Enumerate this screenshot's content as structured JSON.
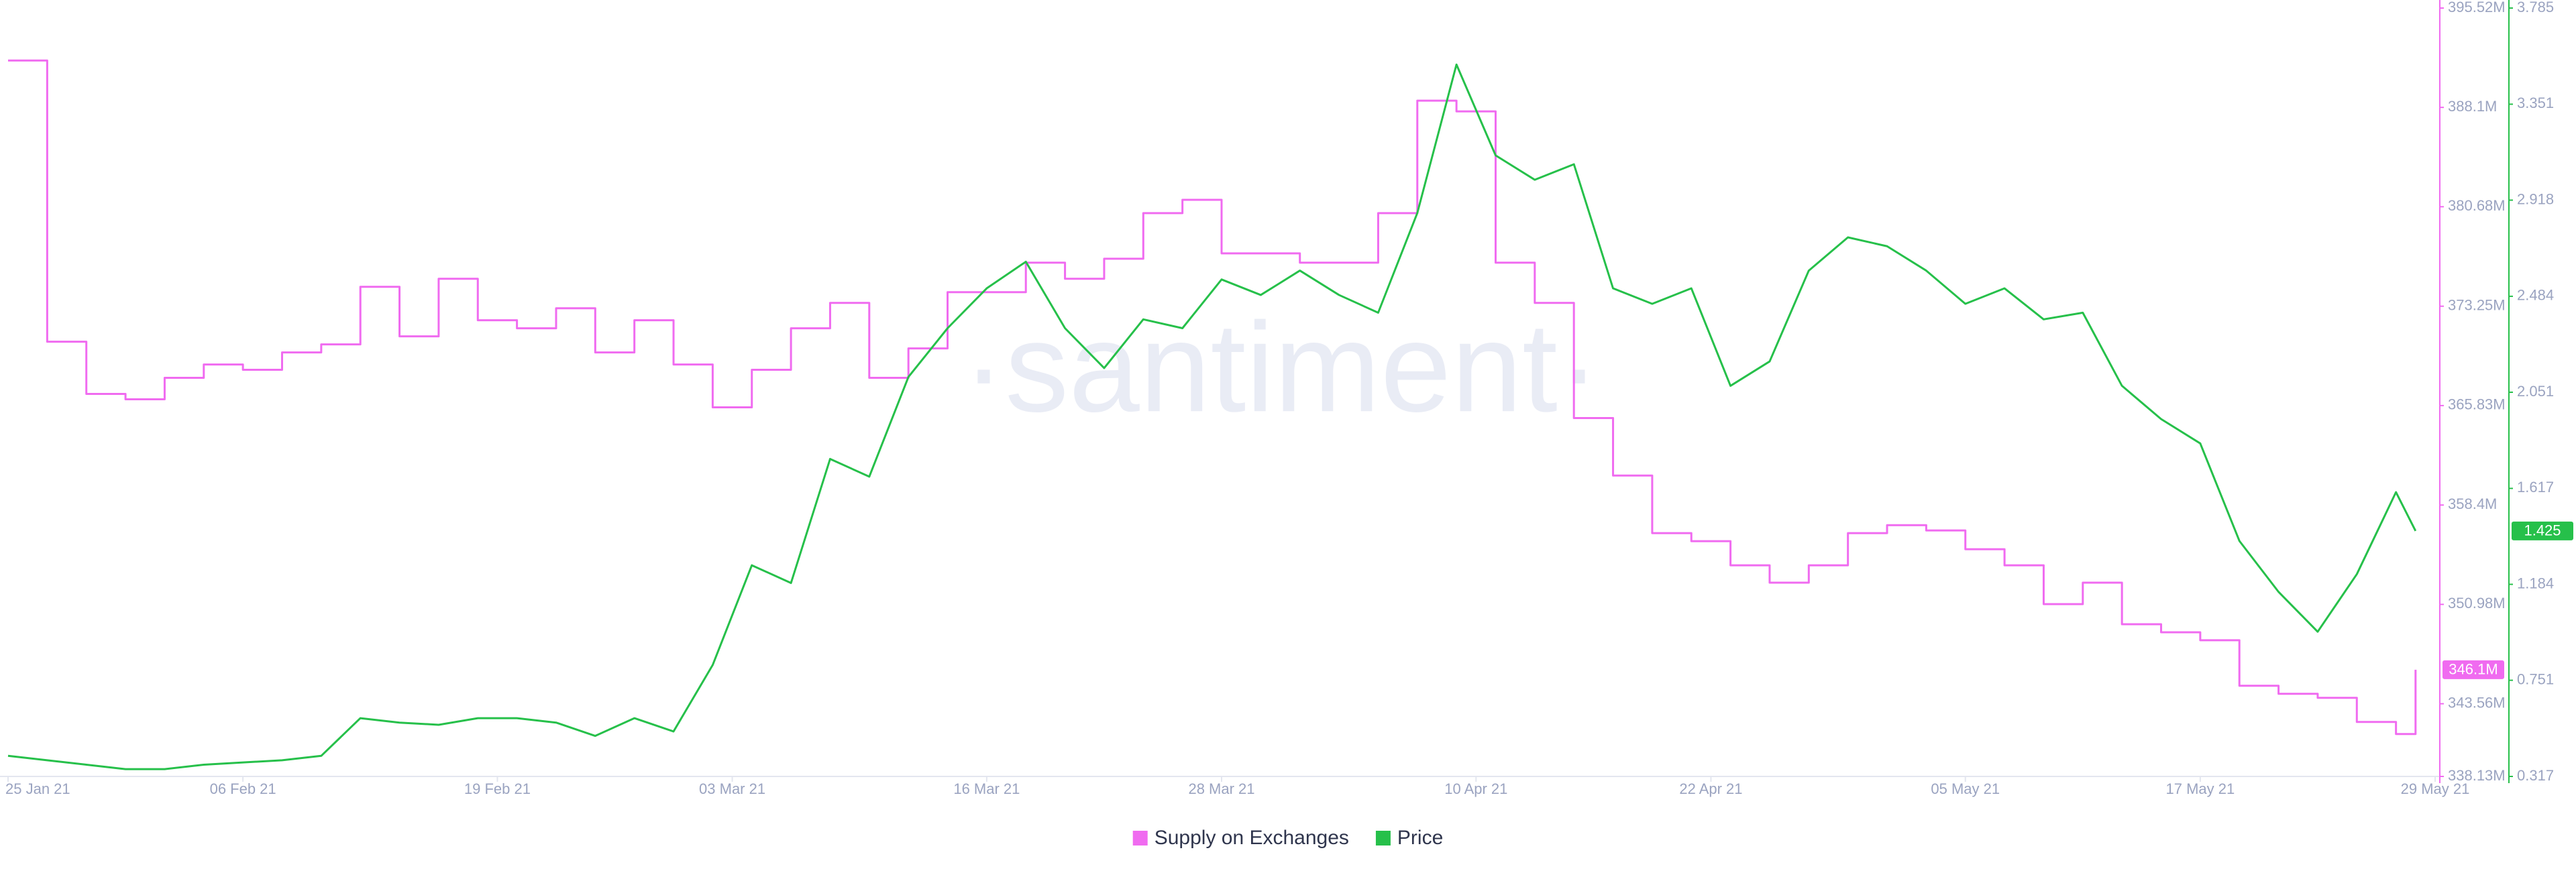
{
  "chart_data": {
    "type": "line",
    "watermark": "·santiment·",
    "x": [
      "2021-01-25",
      "2021-01-27",
      "2021-01-29",
      "2021-01-31",
      "2021-02-02",
      "2021-02-04",
      "2021-02-06",
      "2021-02-08",
      "2021-02-10",
      "2021-02-12",
      "2021-02-14",
      "2021-02-16",
      "2021-02-18",
      "2021-02-20",
      "2021-02-22",
      "2021-02-24",
      "2021-02-26",
      "2021-02-28",
      "2021-03-02",
      "2021-03-04",
      "2021-03-06",
      "2021-03-08",
      "2021-03-10",
      "2021-03-12",
      "2021-03-14",
      "2021-03-16",
      "2021-03-18",
      "2021-03-20",
      "2021-03-22",
      "2021-03-24",
      "2021-03-26",
      "2021-03-28",
      "2021-03-30",
      "2021-04-01",
      "2021-04-03",
      "2021-04-05",
      "2021-04-07",
      "2021-04-09",
      "2021-04-11",
      "2021-04-13",
      "2021-04-15",
      "2021-04-17",
      "2021-04-19",
      "2021-04-21",
      "2021-04-23",
      "2021-04-25",
      "2021-04-27",
      "2021-04-29",
      "2021-05-01",
      "2021-05-03",
      "2021-05-05",
      "2021-05-07",
      "2021-05-09",
      "2021-05-11",
      "2021-05-13",
      "2021-05-15",
      "2021-05-17",
      "2021-05-19",
      "2021-05-21",
      "2021-05-23",
      "2021-05-25",
      "2021-05-27",
      "2021-05-28"
    ],
    "xlim": [
      "2021-01-25",
      "2021-05-29"
    ],
    "xticks": [
      {
        "value": "2021-01-25",
        "label": "25 Jan 21"
      },
      {
        "value": "2021-02-06",
        "label": "06 Feb 21"
      },
      {
        "value": "2021-02-19",
        "label": "19 Feb 21"
      },
      {
        "value": "2021-03-03",
        "label": "03 Mar 21"
      },
      {
        "value": "2021-03-16",
        "label": "16 Mar 21"
      },
      {
        "value": "2021-03-28",
        "label": "28 Mar 21"
      },
      {
        "value": "2021-04-10",
        "label": "10 Apr 21"
      },
      {
        "value": "2021-04-22",
        "label": "22 Apr 21"
      },
      {
        "value": "2021-05-05",
        "label": "05 May 21"
      },
      {
        "value": "2021-05-17",
        "label": "17 May 21"
      },
      {
        "value": "2021-05-29",
        "label": "29 May 21"
      }
    ],
    "ylim": [
      338.13,
      395.52
    ],
    "yticks": [
      {
        "value": 338.13,
        "label": "338.13M"
      },
      {
        "value": 343.56,
        "label": "343.56M"
      },
      {
        "value": 350.98,
        "label": "350.98M"
      },
      {
        "value": 358.4,
        "label": "358.4M"
      },
      {
        "value": 365.83,
        "label": "365.83M"
      },
      {
        "value": 373.25,
        "label": "373.25M"
      },
      {
        "value": 380.68,
        "label": "380.68M"
      },
      {
        "value": 388.1,
        "label": "388.1M"
      },
      {
        "value": 395.52,
        "label": "395.52M"
      }
    ],
    "y2lim": [
      0.317,
      3.785
    ],
    "y2ticks": [
      0.317,
      0.751,
      1.184,
      1.617,
      2.051,
      2.484,
      2.918,
      3.351,
      3.785
    ],
    "series": [
      {
        "name": "Supply on Exchanges",
        "color": "#f06bf0",
        "axis": "y",
        "step": true,
        "last_label": "346.1M",
        "values": [
          391.6,
          370.6,
          366.7,
          366.3,
          367.9,
          368.9,
          368.5,
          369.8,
          370.4,
          374.7,
          371.0,
          375.3,
          372.2,
          371.6,
          373.1,
          369.8,
          372.2,
          368.9,
          365.7,
          368.5,
          371.6,
          373.5,
          367.9,
          370.1,
          374.3,
          374.3,
          376.5,
          375.3,
          376.8,
          380.2,
          381.2,
          377.2,
          377.2,
          376.5,
          376.5,
          380.2,
          388.6,
          387.8,
          376.5,
          373.5,
          364.9,
          360.6,
          356.3,
          355.7,
          353.9,
          352.6,
          353.9,
          356.3,
          356.9,
          356.5,
          355.1,
          353.9,
          351.0,
          352.6,
          349.5,
          348.9,
          348.3,
          344.9,
          344.3,
          344.0,
          342.2,
          341.3,
          346.1
        ]
      },
      {
        "name": "Price",
        "color": "#26c04a",
        "axis": "y2",
        "step": false,
        "last_label": "1.425",
        "values": [
          0.41,
          0.39,
          0.37,
          0.35,
          0.35,
          0.37,
          0.38,
          0.39,
          0.41,
          0.58,
          0.56,
          0.55,
          0.58,
          0.58,
          0.56,
          0.5,
          0.58,
          0.52,
          0.82,
          1.27,
          1.19,
          1.75,
          1.67,
          2.12,
          2.34,
          2.52,
          2.64,
          2.34,
          2.16,
          2.38,
          2.34,
          2.56,
          2.49,
          2.6,
          2.49,
          2.41,
          2.86,
          3.53,
          3.12,
          3.01,
          3.08,
          2.52,
          2.45,
          2.52,
          2.08,
          2.19,
          2.6,
          2.75,
          2.71,
          2.6,
          2.45,
          2.52,
          2.38,
          2.41,
          2.08,
          1.93,
          1.82,
          1.38,
          1.15,
          0.97,
          1.23,
          1.6,
          1.425
        ]
      }
    ]
  }
}
